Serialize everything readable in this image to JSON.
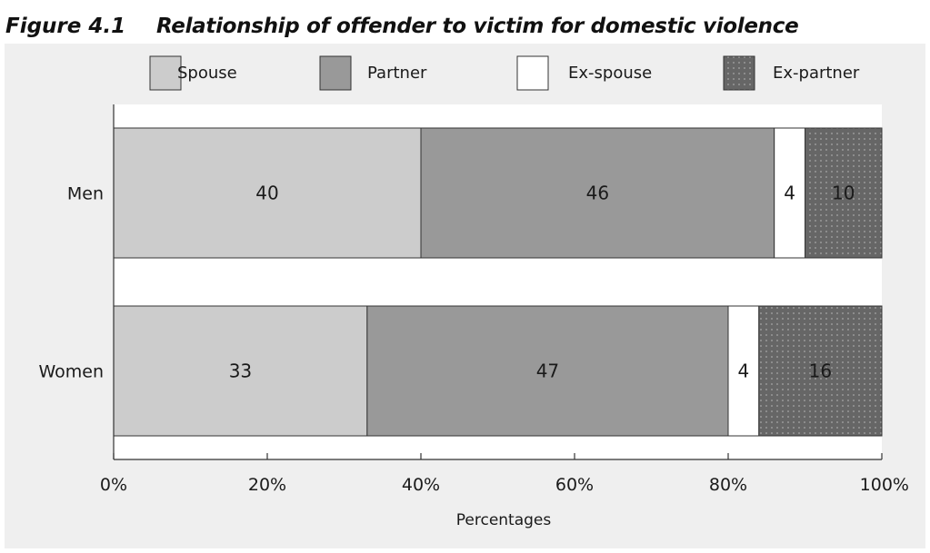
{
  "figure_number": "Figure 4.1",
  "figure_title": "Relationship of offender to victim for domestic violence",
  "colors": {
    "background_panel": "#efefef",
    "plot_background": "#ffffff",
    "spouse": "#cccccc",
    "partner": "#999999",
    "ex_spouse": "#ffffff",
    "ex_partner": "#666666",
    "ex_partner_dots": "#a8a8a8",
    "outline": "#333333"
  },
  "chart_data": {
    "type": "bar",
    "orientation": "horizontal",
    "stacked": true,
    "categories": [
      "Men",
      "Women"
    ],
    "series": [
      {
        "name": "Spouse",
        "values": [
          40,
          33
        ],
        "labels": [
          "40",
          "33"
        ],
        "fill": "#cccccc",
        "pattern": "solid"
      },
      {
        "name": "Partner",
        "values": [
          46,
          47
        ],
        "labels": [
          "46",
          "47"
        ],
        "fill": "#999999",
        "pattern": "solid"
      },
      {
        "name": "Ex-spouse",
        "values": [
          4,
          4
        ],
        "labels": [
          "4",
          "4"
        ],
        "fill": "#ffffff",
        "pattern": "solid"
      },
      {
        "name": "Ex-partner",
        "values": [
          10,
          16
        ],
        "labels": [
          "10",
          "16"
        ],
        "fill": "#666666",
        "pattern": "dotted"
      }
    ],
    "xlabel": "Percentages",
    "ylabel": "",
    "xlim": [
      0,
      100
    ],
    "xticks": [
      0,
      20,
      40,
      60,
      80,
      100
    ],
    "xtick_labels": [
      "0%",
      "20%",
      "40%",
      "60%",
      "80%",
      "100%"
    ],
    "legend_position": "top",
    "grid": false
  }
}
